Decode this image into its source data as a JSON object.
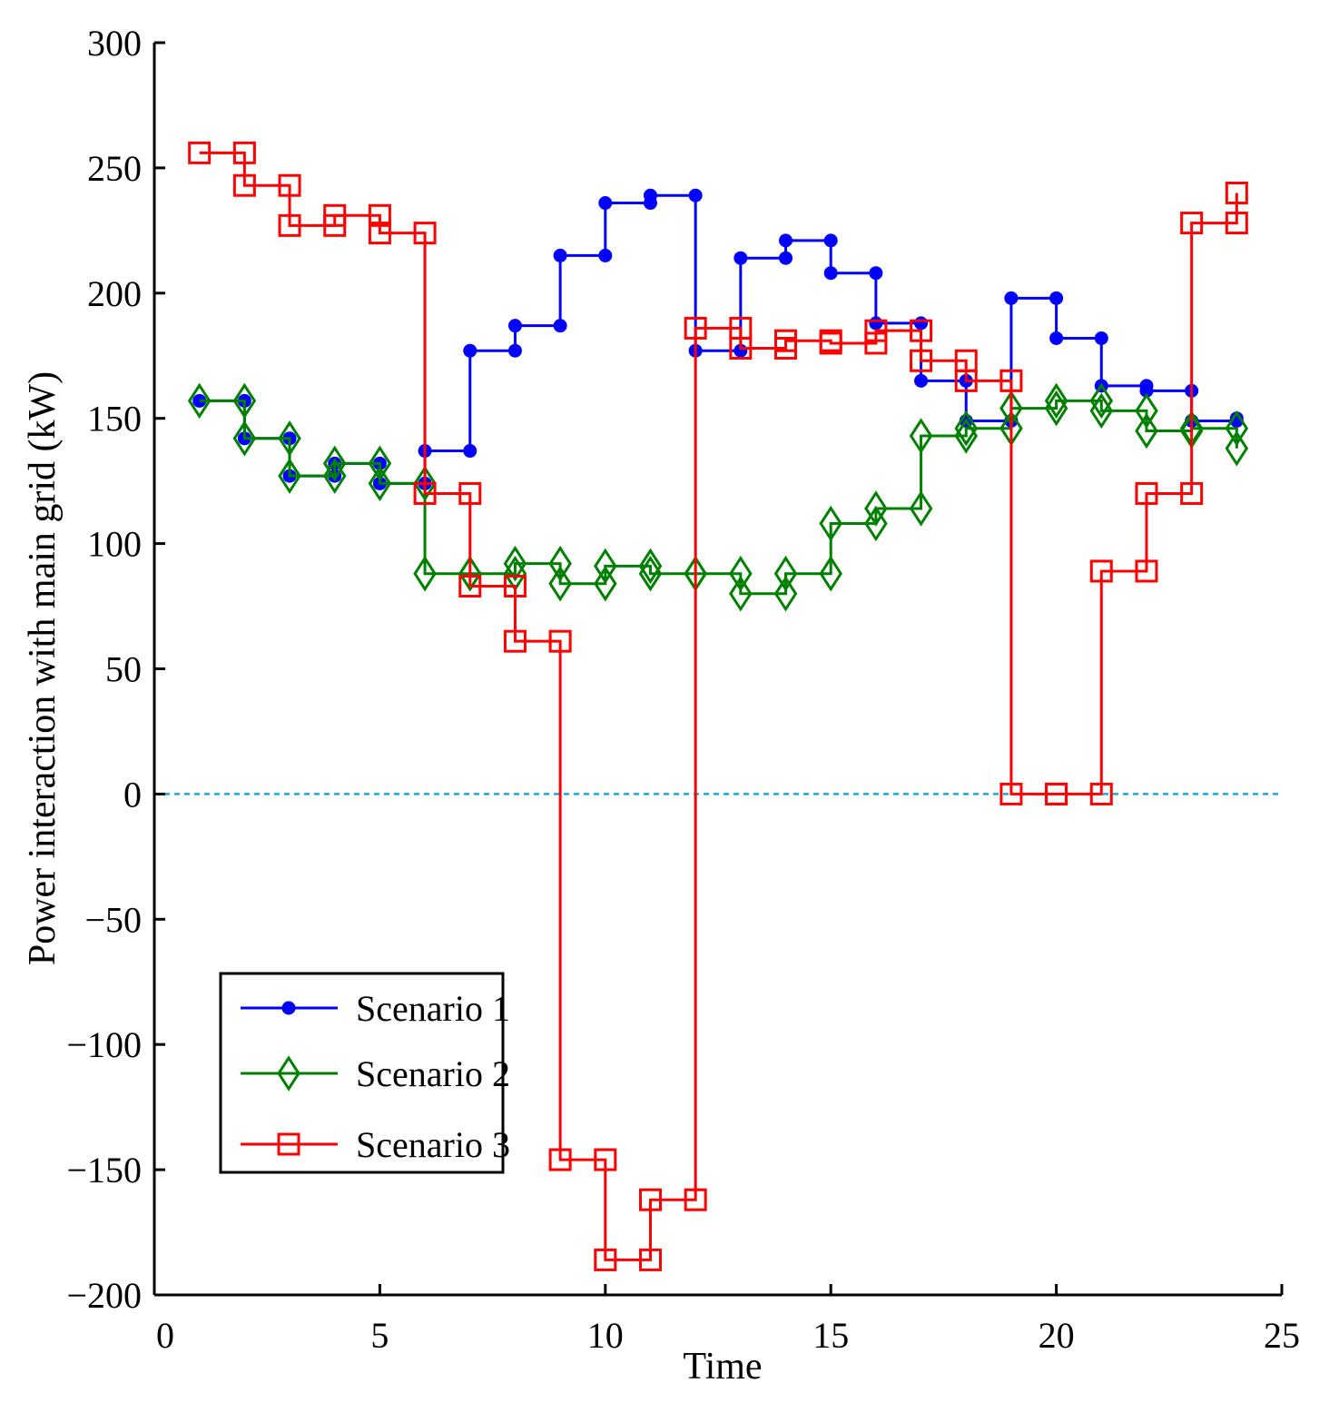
{
  "chart_data": {
    "type": "line",
    "step": "post",
    "title": "",
    "xlabel": "Time",
    "ylabel": "Power interaction with main grid (kW)",
    "xlim": [
      0,
      25
    ],
    "ylim": [
      -200,
      300
    ],
    "xticks": [
      0,
      5,
      10,
      15,
      20,
      25
    ],
    "yticks": [
      -200,
      -150,
      -100,
      -50,
      0,
      50,
      100,
      150,
      200,
      250,
      300
    ],
    "xtick_labels": [
      "0",
      "5",
      "10",
      "15",
      "20",
      "25"
    ],
    "ytick_labels": [
      "−200",
      "−150",
      "−100",
      "−50",
      "0",
      "50",
      "100",
      "150",
      "200",
      "250",
      "300"
    ],
    "grid": false,
    "legend_position": "lower-left",
    "reference_line": {
      "y": 0,
      "color": "#1aa8e0",
      "style": "dotted"
    },
    "x": [
      1,
      2,
      3,
      4,
      5,
      6,
      7,
      8,
      9,
      10,
      11,
      12,
      13,
      14,
      15,
      16,
      17,
      18,
      19,
      20,
      21,
      22,
      23,
      24
    ],
    "series": [
      {
        "name": "Scenario 1",
        "color": "#0000ff",
        "marker": "dot",
        "values": [
          157,
          142,
          127,
          132,
          124,
          137,
          177,
          187,
          215,
          236,
          239,
          177,
          214,
          221,
          208,
          188,
          165,
          149,
          198,
          182,
          163,
          161,
          149,
          150
        ]
      },
      {
        "name": "Scenario 2",
        "color": "#008000",
        "marker": "diamond",
        "values": [
          157,
          142,
          127,
          132,
          124,
          88,
          88,
          92,
          84,
          91,
          88,
          88,
          80,
          88,
          108,
          114,
          143,
          146,
          154,
          157,
          153,
          145,
          146,
          138
        ]
      },
      {
        "name": "Scenario 3",
        "color": "#ff0000",
        "marker": "square",
        "values": [
          256,
          243,
          227,
          231,
          224,
          120,
          83,
          61,
          -146,
          -186,
          -162,
          186,
          178,
          181,
          180,
          185,
          173,
          165,
          0,
          0,
          89,
          120,
          228,
          240
        ]
      }
    ]
  }
}
